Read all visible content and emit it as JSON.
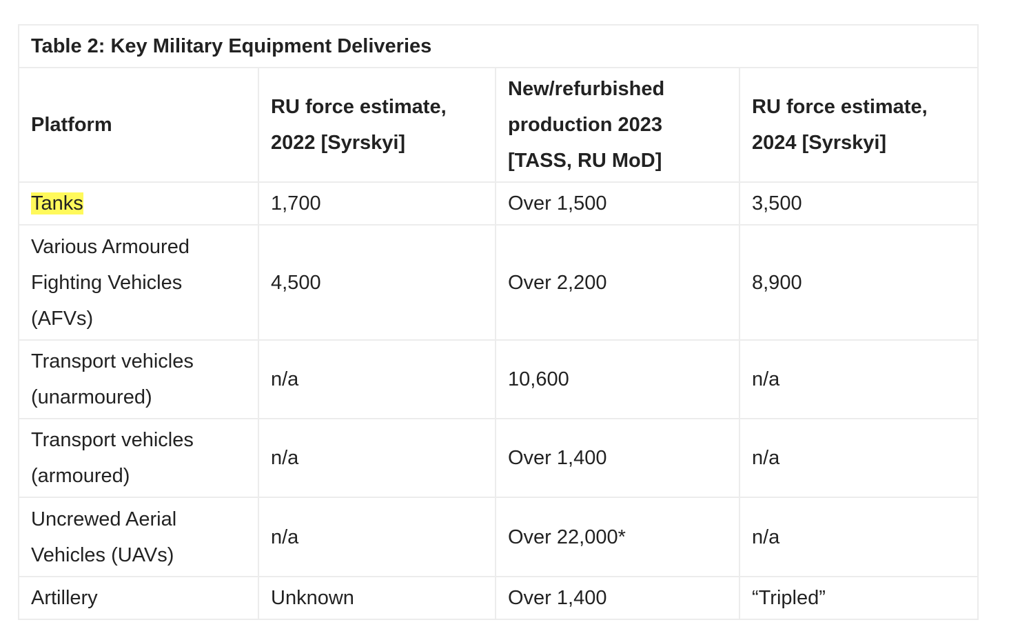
{
  "table": {
    "caption": "Table 2: Key Military Equipment Deliveries",
    "headers": [
      "Platform",
      "RU force estimate, 2022 [Syrskyi]",
      "New/refurbished production 2023 [TASS, RU MoD]",
      "RU force estimate, 2024 [Syrskyi]"
    ],
    "rows": [
      {
        "platform": "Tanks",
        "est2022": "1,700",
        "prod2023": "Over 1,500",
        "est2024": "3,500"
      },
      {
        "platform": "Various Armoured Fighting Vehicles (AFVs)",
        "est2022": "4,500",
        "prod2023": "Over 2,200",
        "est2024": "8,900"
      },
      {
        "platform": "Transport vehicles (unarmoured)",
        "est2022": "n/a",
        "prod2023": "10,600",
        "est2024": "n/a"
      },
      {
        "platform": "Transport vehicles (armoured)",
        "est2022": "n/a",
        "prod2023": "Over 1,400",
        "est2024": "n/a"
      },
      {
        "platform": "Uncrewed Aerial Vehicles (UAVs)",
        "est2022": "n/a",
        "prod2023": "Over 22,000*",
        "est2024": "n/a"
      },
      {
        "platform": "Artillery",
        "est2022": "Unknown",
        "prod2023": "Over 1,400",
        "est2024": "“Tripled”"
      }
    ],
    "highlight_color": "#fff95b"
  }
}
